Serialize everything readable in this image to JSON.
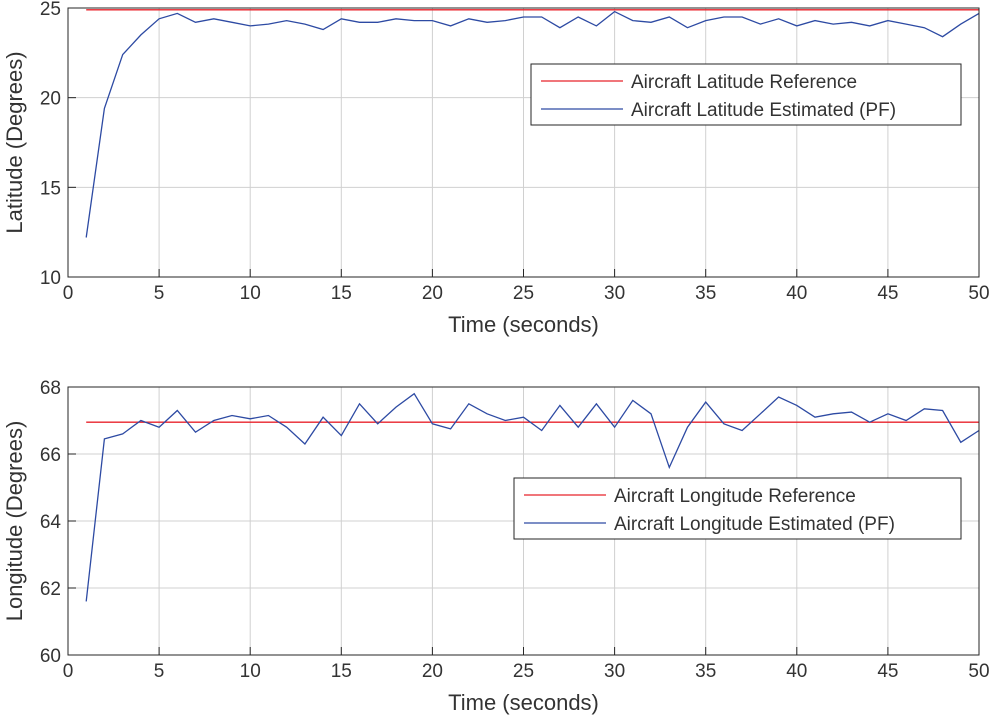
{
  "chart_data": [
    {
      "type": "line",
      "xlabel": "Time (seconds)",
      "ylabel": "Latitude (Degrees)",
      "xlim": [
        0,
        50
      ],
      "ylim": [
        10,
        25
      ],
      "xticks": [
        0,
        5,
        10,
        15,
        20,
        25,
        30,
        35,
        40,
        45,
        50
      ],
      "yticks": [
        10,
        15,
        20,
        25
      ],
      "grid": true,
      "legend_position": "top-right",
      "x": [
        1,
        2,
        3,
        4,
        5,
        6,
        7,
        8,
        9,
        10,
        11,
        12,
        13,
        14,
        15,
        16,
        17,
        18,
        19,
        20,
        21,
        22,
        23,
        24,
        25,
        26,
        27,
        28,
        29,
        30,
        31,
        32,
        33,
        34,
        35,
        36,
        37,
        38,
        39,
        40,
        41,
        42,
        43,
        44,
        45,
        46,
        47,
        48,
        49,
        50
      ],
      "series": [
        {
          "name": "Aircraft Latitude Reference",
          "color": "#e8232b",
          "values": [
            24.9,
            24.9,
            24.9,
            24.9,
            24.9,
            24.9,
            24.9,
            24.9,
            24.9,
            24.9,
            24.9,
            24.9,
            24.9,
            24.9,
            24.9,
            24.9,
            24.9,
            24.9,
            24.9,
            24.9,
            24.9,
            24.9,
            24.9,
            24.9,
            24.9,
            24.9,
            24.9,
            24.9,
            24.9,
            24.9,
            24.9,
            24.9,
            24.9,
            24.9,
            24.9,
            24.9,
            24.9,
            24.9,
            24.9,
            24.9,
            24.9,
            24.9,
            24.9,
            24.9,
            24.9,
            24.9,
            24.9,
            24.9,
            24.9,
            24.9
          ]
        },
        {
          "name": "Aircraft Latitude Estimated (PF)",
          "color": "#2d4aa3",
          "values": [
            12.2,
            19.4,
            22.4,
            23.5,
            24.4,
            24.7,
            24.2,
            24.4,
            24.2,
            24.0,
            24.1,
            24.3,
            24.1,
            23.8,
            24.4,
            24.2,
            24.2,
            24.4,
            24.3,
            24.3,
            24.0,
            24.4,
            24.2,
            24.3,
            24.5,
            24.5,
            23.9,
            24.5,
            24.0,
            24.8,
            24.3,
            24.2,
            24.5,
            23.9,
            24.3,
            24.5,
            24.5,
            24.1,
            24.4,
            24.0,
            24.3,
            24.1,
            24.2,
            24.0,
            24.3,
            24.1,
            23.9,
            23.4,
            24.1,
            24.7
          ]
        }
      ]
    },
    {
      "type": "line",
      "xlabel": "Time (seconds)",
      "ylabel": "Longitude (Degrees)",
      "xlim": [
        0,
        50
      ],
      "ylim": [
        60,
        68
      ],
      "xticks": [
        0,
        5,
        10,
        15,
        20,
        25,
        30,
        35,
        40,
        45,
        50
      ],
      "yticks": [
        60,
        62,
        64,
        66,
        68
      ],
      "grid": true,
      "legend_position": "right",
      "x": [
        1,
        2,
        3,
        4,
        5,
        6,
        7,
        8,
        9,
        10,
        11,
        12,
        13,
        14,
        15,
        16,
        17,
        18,
        19,
        20,
        21,
        22,
        23,
        24,
        25,
        26,
        27,
        28,
        29,
        30,
        31,
        32,
        33,
        34,
        35,
        36,
        37,
        38,
        39,
        40,
        41,
        42,
        43,
        44,
        45,
        46,
        47,
        48,
        49,
        50
      ],
      "series": [
        {
          "name": "Aircraft Longitude Reference",
          "color": "#e8232b",
          "values": [
            66.95,
            66.95,
            66.95,
            66.95,
            66.95,
            66.95,
            66.95,
            66.95,
            66.95,
            66.95,
            66.95,
            66.95,
            66.95,
            66.95,
            66.95,
            66.95,
            66.95,
            66.95,
            66.95,
            66.95,
            66.95,
            66.95,
            66.95,
            66.95,
            66.95,
            66.95,
            66.95,
            66.95,
            66.95,
            66.95,
            66.95,
            66.95,
            66.95,
            66.95,
            66.95,
            66.95,
            66.95,
            66.95,
            66.95,
            66.95,
            66.95,
            66.95,
            66.95,
            66.95,
            66.95,
            66.95,
            66.95,
            66.95,
            66.95,
            66.95
          ]
        },
        {
          "name": "Aircraft Longitude Estimated (PF)",
          "color": "#2d4aa3",
          "values": [
            61.6,
            66.45,
            66.6,
            67.0,
            66.8,
            67.3,
            66.65,
            67.0,
            67.15,
            67.05,
            67.15,
            66.8,
            66.3,
            67.1,
            66.55,
            67.5,
            66.9,
            67.4,
            67.8,
            66.9,
            66.75,
            67.5,
            67.2,
            67.0,
            67.1,
            66.7,
            67.45,
            66.8,
            67.5,
            66.8,
            67.6,
            67.2,
            65.6,
            66.8,
            67.55,
            66.9,
            66.7,
            67.2,
            67.7,
            67.45,
            67.1,
            67.2,
            67.25,
            66.95,
            67.2,
            67.0,
            67.35,
            67.3,
            66.35,
            66.7
          ]
        }
      ]
    }
  ]
}
